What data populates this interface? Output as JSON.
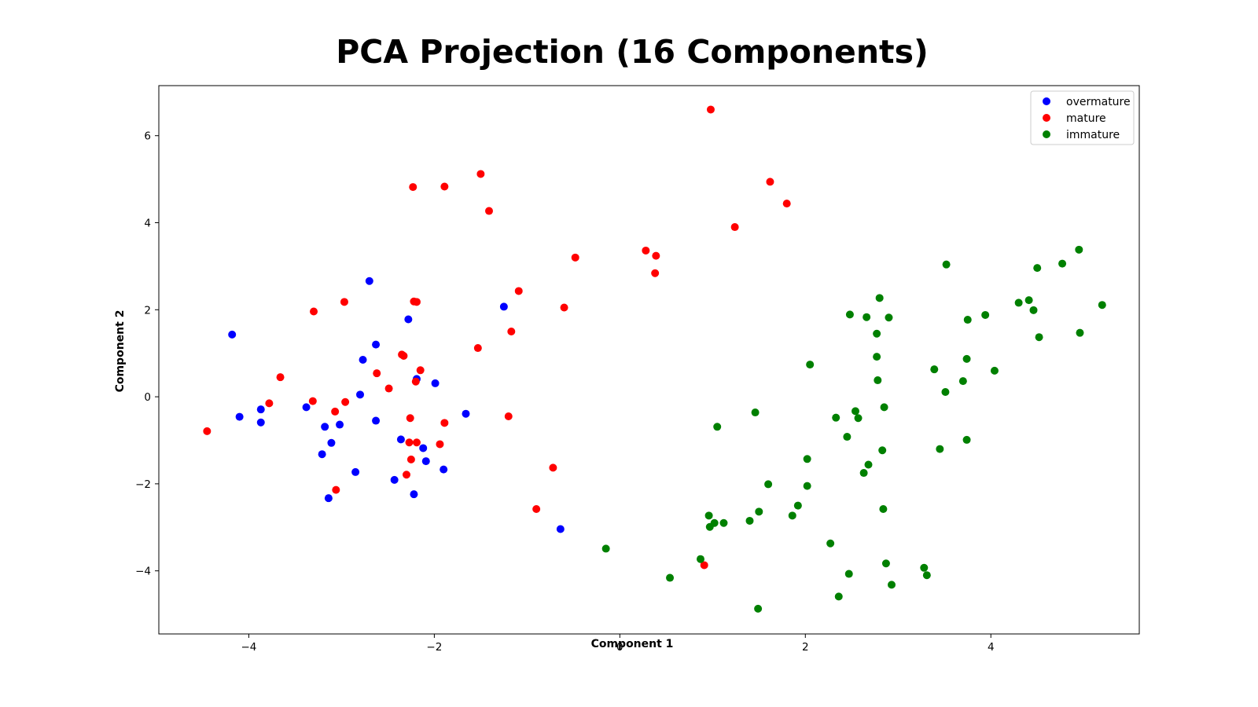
{
  "chart_data": {
    "type": "scatter",
    "title": "PCA Projection (16 Components)",
    "xlabel": "Component 1",
    "ylabel": "Component 2",
    "xlim": [
      -4.97,
      5.6
    ],
    "ylim": [
      -5.45,
      7.15
    ],
    "xticks": [
      -4,
      -2,
      0,
      2,
      4
    ],
    "yticks": [
      -4,
      -2,
      0,
      2,
      4,
      6
    ],
    "grid": false,
    "legend_position": "top-right",
    "series": [
      {
        "name": "overmature",
        "color": "#0000ff",
        "points": [
          [
            -4.18,
            1.43
          ],
          [
            -4.1,
            -0.46
          ],
          [
            -3.87,
            -0.29
          ],
          [
            -3.87,
            -0.59
          ],
          [
            -3.38,
            -0.24
          ],
          [
            -3.18,
            -0.69
          ],
          [
            -3.21,
            -1.32
          ],
          [
            -3.11,
            -1.06
          ],
          [
            -3.14,
            -2.33
          ],
          [
            -3.02,
            -0.64
          ],
          [
            -2.85,
            -1.73
          ],
          [
            -2.8,
            0.05
          ],
          [
            -2.77,
            0.85
          ],
          [
            -2.7,
            2.66
          ],
          [
            -2.63,
            1.2
          ],
          [
            -2.63,
            -0.55
          ],
          [
            -2.43,
            -1.91
          ],
          [
            -2.36,
            -0.98
          ],
          [
            -2.28,
            1.78
          ],
          [
            -2.22,
            -2.24
          ],
          [
            -2.19,
            0.41
          ],
          [
            -2.12,
            -1.18
          ],
          [
            -2.09,
            -1.48
          ],
          [
            -1.99,
            0.31
          ],
          [
            -1.9,
            -1.67
          ],
          [
            -1.66,
            -0.39
          ],
          [
            -1.25,
            2.07
          ],
          [
            -0.64,
            -3.04
          ]
        ]
      },
      {
        "name": "mature",
        "color": "#ff0000",
        "points": [
          [
            -4.45,
            -0.79
          ],
          [
            -3.78,
            -0.15
          ],
          [
            -3.66,
            0.45
          ],
          [
            -3.31,
            -0.1
          ],
          [
            -3.3,
            1.96
          ],
          [
            -3.07,
            -0.34
          ],
          [
            -3.06,
            -2.14
          ],
          [
            -2.97,
            2.18
          ],
          [
            -2.96,
            -0.12
          ],
          [
            -2.62,
            0.54
          ],
          [
            -2.49,
            0.19
          ],
          [
            -2.35,
            0.97
          ],
          [
            -2.33,
            0.94
          ],
          [
            -2.3,
            -1.79
          ],
          [
            -2.27,
            -1.05
          ],
          [
            -2.26,
            -0.49
          ],
          [
            -2.25,
            -1.44
          ],
          [
            -2.23,
            4.82
          ],
          [
            -2.22,
            2.19
          ],
          [
            -2.19,
            2.18
          ],
          [
            -2.2,
            0.35
          ],
          [
            -2.19,
            -1.05
          ],
          [
            -2.15,
            0.61
          ],
          [
            -1.94,
            -1.09
          ],
          [
            -1.89,
            -0.6
          ],
          [
            -1.89,
            4.83
          ],
          [
            -1.53,
            1.12
          ],
          [
            -1.5,
            5.12
          ],
          [
            -1.41,
            4.27
          ],
          [
            -1.2,
            -0.45
          ],
          [
            -1.17,
            1.5
          ],
          [
            -1.09,
            2.43
          ],
          [
            -0.72,
            -1.63
          ],
          [
            -0.9,
            -2.58
          ],
          [
            -0.6,
            2.05
          ],
          [
            -0.48,
            3.2
          ],
          [
            0.28,
            3.36
          ],
          [
            0.38,
            2.84
          ],
          [
            0.39,
            3.24
          ],
          [
            0.91,
            -3.87
          ],
          [
            0.98,
            6.6
          ],
          [
            1.24,
            3.9
          ],
          [
            1.62,
            4.94
          ],
          [
            1.8,
            4.44
          ]
        ]
      },
      {
        "name": "immature",
        "color": "#008000",
        "points": [
          [
            -0.15,
            -3.49
          ],
          [
            0.54,
            -4.16
          ],
          [
            0.87,
            -3.73
          ],
          [
            0.96,
            -2.73
          ],
          [
            0.97,
            -2.99
          ],
          [
            1.02,
            -2.9
          ],
          [
            1.05,
            -0.69
          ],
          [
            1.12,
            -2.9
          ],
          [
            1.4,
            -2.85
          ],
          [
            1.46,
            -0.36
          ],
          [
            1.49,
            -4.87
          ],
          [
            1.5,
            -2.64
          ],
          [
            1.6,
            -2.01
          ],
          [
            1.86,
            -2.73
          ],
          [
            1.92,
            -2.5
          ],
          [
            2.02,
            -1.43
          ],
          [
            2.02,
            -2.05
          ],
          [
            2.05,
            0.74
          ],
          [
            2.27,
            -3.37
          ],
          [
            2.33,
            -0.48
          ],
          [
            2.36,
            -4.59
          ],
          [
            2.45,
            -0.92
          ],
          [
            2.47,
            -4.07
          ],
          [
            2.48,
            1.89
          ],
          [
            2.54,
            -0.33
          ],
          [
            2.57,
            -0.49
          ],
          [
            2.63,
            -1.75
          ],
          [
            2.66,
            1.83
          ],
          [
            2.68,
            -1.56
          ],
          [
            2.77,
            1.45
          ],
          [
            2.77,
            0.92
          ],
          [
            2.78,
            0.38
          ],
          [
            2.8,
            2.27
          ],
          [
            2.83,
            -1.23
          ],
          [
            2.84,
            -2.58
          ],
          [
            2.85,
            -0.24
          ],
          [
            2.87,
            -3.83
          ],
          [
            2.9,
            1.82
          ],
          [
            2.93,
            -4.32
          ],
          [
            3.28,
            -3.93
          ],
          [
            3.31,
            -4.1
          ],
          [
            3.39,
            0.63
          ],
          [
            3.45,
            -1.2
          ],
          [
            3.51,
            0.11
          ],
          [
            3.52,
            3.04
          ],
          [
            3.7,
            0.36
          ],
          [
            3.74,
            0.87
          ],
          [
            3.74,
            -0.99
          ],
          [
            3.75,
            1.77
          ],
          [
            3.94,
            1.88
          ],
          [
            4.04,
            0.6
          ],
          [
            4.3,
            2.16
          ],
          [
            4.41,
            2.22
          ],
          [
            4.46,
            1.99
          ],
          [
            4.5,
            2.96
          ],
          [
            4.52,
            1.37
          ],
          [
            4.77,
            3.06
          ],
          [
            4.95,
            3.38
          ],
          [
            4.96,
            1.47
          ],
          [
            5.2,
            2.11
          ]
        ]
      }
    ]
  }
}
